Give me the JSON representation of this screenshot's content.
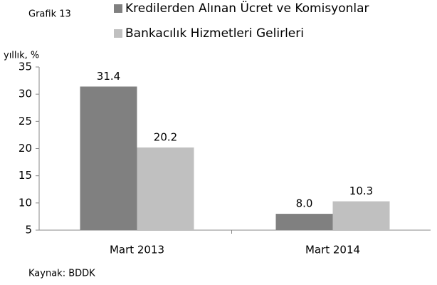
{
  "chart_data": {
    "type": "bar",
    "title": "Grafik 13",
    "y_label": "yıllık, %",
    "source": "Kaynak: BDDK",
    "categories": [
      "Mart 2013",
      "Mart 2014"
    ],
    "series": [
      {
        "name": "Kredilerden Alınan Ücret ve Komisyonlar",
        "color": "#808080",
        "values": [
          31.4,
          8.0
        ],
        "value_labels": [
          "31.4",
          "8.0"
        ]
      },
      {
        "name": "Bankacılık Hizmetleri Gelirleri",
        "color": "#c0c0c0",
        "values": [
          20.2,
          10.3
        ],
        "value_labels": [
          "20.2",
          "10.3"
        ]
      }
    ],
    "ylim": [
      5,
      35
    ],
    "yticks": [
      5,
      10,
      15,
      20,
      25,
      30,
      35
    ],
    "grid": false
  }
}
